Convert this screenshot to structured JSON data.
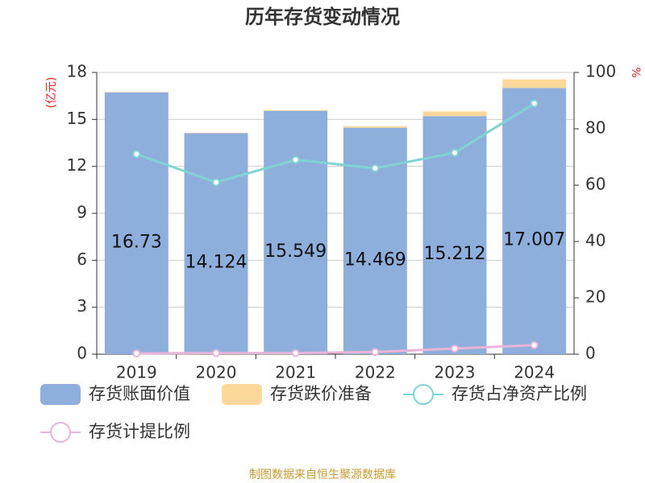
{
  "chart_data": {
    "type": "bar",
    "title": "历年存货变动情况",
    "y_label": "(亿元)",
    "y2_label": "%",
    "source": "制图数据来自恒生聚源数据库",
    "categories": [
      "2019",
      "2020",
      "2021",
      "2022",
      "2023",
      "2024"
    ],
    "series": [
      {
        "name": "存货账面价值",
        "type": "bar",
        "color": "#8eaedb",
        "values": [
          16.73,
          14.124,
          15.549,
          14.469,
          15.212,
          17.007
        ]
      },
      {
        "name": "存货跌价准备",
        "type": "bar",
        "color": "#fdd89b",
        "values": [
          0.02,
          0.03,
          0.05,
          0.1,
          0.3,
          0.55
        ]
      },
      {
        "name": "存货占净资产比例",
        "type": "line",
        "axis": "y2",
        "color": "#80d4d4",
        "values": [
          71,
          61,
          69,
          66,
          71.5,
          89
        ]
      },
      {
        "name": "存货计提比例",
        "type": "line",
        "axis": "y2",
        "color": "#e8b4d8",
        "values": [
          0.3,
          0.4,
          0.4,
          0.8,
          2.0,
          3.2
        ]
      }
    ],
    "ylim": [
      0,
      18
    ],
    "yticks": [
      0,
      3,
      6,
      9,
      12,
      15,
      18
    ],
    "y2lim": [
      0,
      100
    ],
    "y2ticks": [
      0,
      20,
      40,
      60,
      80,
      100
    ],
    "grid": true,
    "stacked": true
  }
}
